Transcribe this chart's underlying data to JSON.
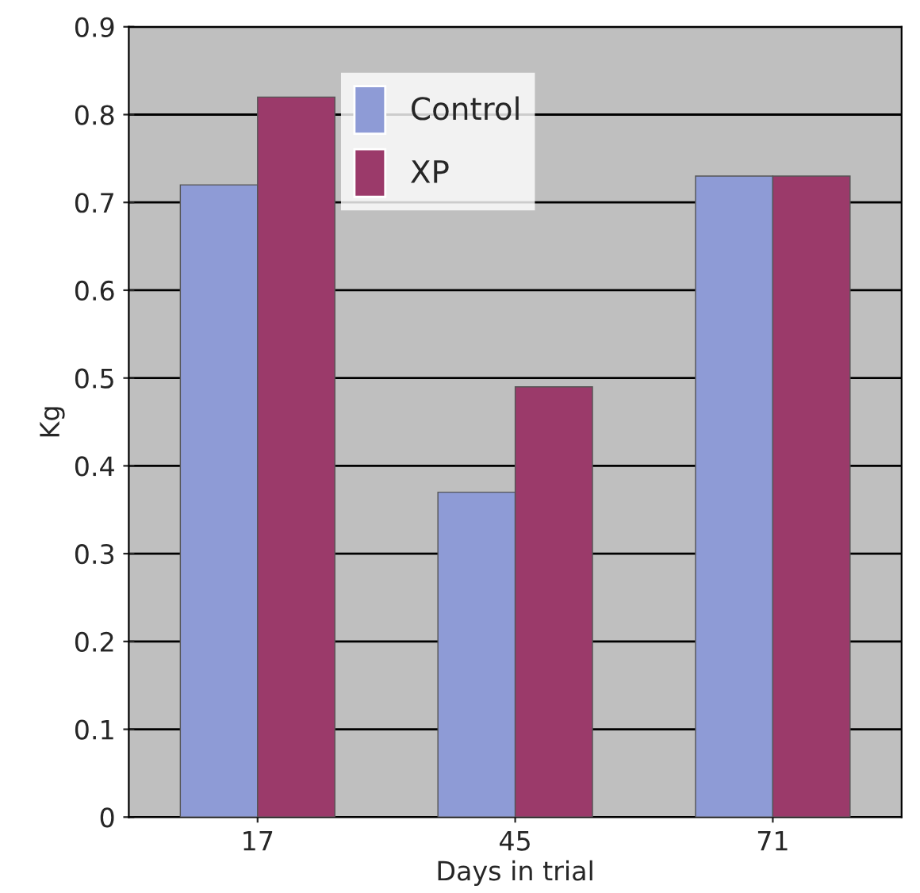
{
  "chart_data": {
    "type": "bar",
    "xlabel": "Days in trial",
    "ylabel": "Kg",
    "categories": [
      "17",
      "45",
      "71"
    ],
    "series": [
      {
        "name": "Control",
        "color": "#8e9bd6",
        "values": [
          0.72,
          0.37,
          0.73
        ]
      },
      {
        "name": "XP",
        "color": "#9b3a6a",
        "values": [
          0.82,
          0.49,
          0.73
        ]
      }
    ],
    "ylim": [
      0,
      0.9
    ],
    "yticks": [
      0,
      0.1,
      0.2,
      0.3,
      0.4,
      0.5,
      0.6,
      0.7,
      0.8,
      0.9
    ],
    "grid": "y",
    "legend": "top"
  }
}
